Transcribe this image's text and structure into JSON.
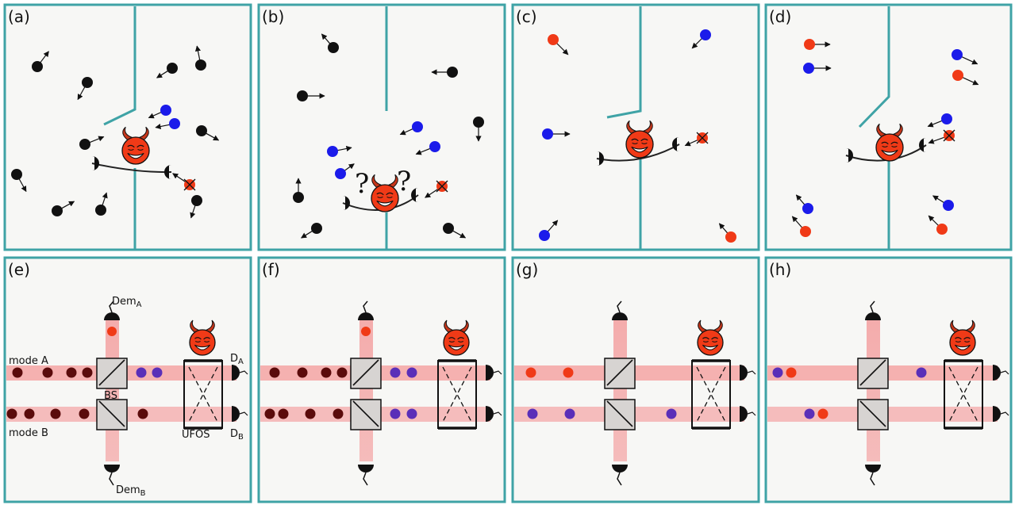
{
  "panels": {
    "a": {
      "label": "(a)"
    },
    "b": {
      "label": "(b)"
    },
    "c": {
      "label": "(c)"
    },
    "d": {
      "label": "(d)"
    },
    "e": {
      "label": "(e)"
    },
    "f": {
      "label": "(f)"
    },
    "g": {
      "label": "(g)"
    },
    "h": {
      "label": "(h)"
    }
  },
  "optics": {
    "dem_a": "Dem",
    "dem_a_sub": "A",
    "dem_b": "Dem",
    "dem_b_sub": "B",
    "mode_a": "mode A",
    "mode_b": "mode B",
    "bs": "BS",
    "ufos": "UFOS",
    "d_a": "D",
    "d_a_sub": "A",
    "d_b": "D",
    "d_b_sub": "B"
  },
  "colors": {
    "frame": "#3fa3a6",
    "panel_bg": "#f7f7f5",
    "hot": "#f03a17",
    "cold": "#1b1bea",
    "neutral": "#111111",
    "purple": "#5a2fb8",
    "maroon": "#5b0b0b",
    "beam": "#f4a8a8"
  }
}
